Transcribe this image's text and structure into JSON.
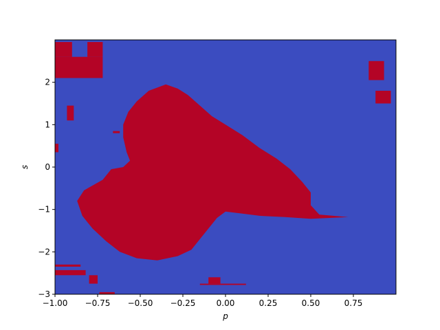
{
  "chart_data": {
    "type": "heatmap",
    "title": "",
    "xlabel": "p",
    "ylabel": "s",
    "xlim": [
      -1.0,
      1.0
    ],
    "ylim": [
      -3.0,
      3.0
    ],
    "xticks": [
      -1.0,
      -0.75,
      -0.5,
      -0.25,
      0.0,
      0.25,
      0.5,
      0.75
    ],
    "xtick_labels": [
      "−1.00",
      "−0.75",
      "−0.50",
      "−0.25",
      "0.00",
      "0.25",
      "0.50",
      "0.75"
    ],
    "yticks": [
      -3,
      -2,
      -1,
      0,
      1,
      2
    ],
    "ytick_labels": [
      "−3",
      "−2",
      "−1",
      "0",
      "1",
      "2"
    ],
    "grid": false,
    "legend": "none",
    "colors": {
      "class_0": "#3b4cc0",
      "class_1": "#b40426",
      "axes_edge": "#000000",
      "background": "#ffffff"
    },
    "classes": [
      {
        "id": 0,
        "color_key": "class_0"
      },
      {
        "id": 1,
        "color_key": "class_1"
      }
    ],
    "regions": [
      {
        "class": 1,
        "shape": "polygon",
        "points": [
          [
            -0.35,
            1.95
          ],
          [
            -0.28,
            1.85
          ],
          [
            -0.22,
            1.7
          ],
          [
            -0.15,
            1.45
          ],
          [
            -0.08,
            1.2
          ],
          [
            0.0,
            1.0
          ],
          [
            0.1,
            0.75
          ],
          [
            0.2,
            0.45
          ],
          [
            0.3,
            0.2
          ],
          [
            0.38,
            -0.05
          ],
          [
            0.45,
            -0.35
          ],
          [
            0.5,
            -0.6
          ],
          [
            0.5,
            -0.9
          ],
          [
            0.55,
            -1.12
          ],
          [
            0.72,
            -1.18
          ],
          [
            0.5,
            -1.22
          ],
          [
            0.35,
            -1.18
          ],
          [
            0.2,
            -1.15
          ],
          [
            0.1,
            -1.1
          ],
          [
            0.0,
            -1.05
          ],
          [
            -0.05,
            -1.2
          ],
          [
            -0.1,
            -1.45
          ],
          [
            -0.15,
            -1.7
          ],
          [
            -0.2,
            -1.95
          ],
          [
            -0.28,
            -2.1
          ],
          [
            -0.4,
            -2.2
          ],
          [
            -0.52,
            -2.15
          ],
          [
            -0.62,
            -2.0
          ],
          [
            -0.7,
            -1.75
          ],
          [
            -0.78,
            -1.45
          ],
          [
            -0.84,
            -1.15
          ],
          [
            -0.87,
            -0.8
          ],
          [
            -0.83,
            -0.55
          ],
          [
            -0.72,
            -0.3
          ],
          [
            -0.67,
            -0.05
          ],
          [
            -0.6,
            0.0
          ],
          [
            -0.56,
            0.15
          ],
          [
            -0.58,
            0.35
          ],
          [
            -0.6,
            0.7
          ],
          [
            -0.6,
            1.0
          ],
          [
            -0.57,
            1.3
          ],
          [
            -0.52,
            1.55
          ],
          [
            -0.45,
            1.8
          ]
        ]
      },
      {
        "class": 1,
        "shape": "rect",
        "x": [
          -1.0,
          -0.72
        ],
        "y": [
          2.1,
          2.6
        ]
      },
      {
        "class": 1,
        "shape": "rect",
        "x": [
          -1.0,
          -0.9
        ],
        "y": [
          2.6,
          2.95
        ]
      },
      {
        "class": 1,
        "shape": "rect",
        "x": [
          -0.81,
          -0.72
        ],
        "y": [
          2.6,
          2.95
        ]
      },
      {
        "class": 1,
        "shape": "rect",
        "x": [
          0.84,
          0.93
        ],
        "y": [
          2.05,
          2.5
        ]
      },
      {
        "class": 1,
        "shape": "rect",
        "x": [
          0.88,
          0.97
        ],
        "y": [
          1.5,
          1.8
        ]
      },
      {
        "class": 1,
        "shape": "rect",
        "x": [
          -0.93,
          -0.89
        ],
        "y": [
          1.1,
          1.45
        ]
      },
      {
        "class": 1,
        "shape": "rect",
        "x": [
          -1.0,
          -0.98
        ],
        "y": [
          0.35,
          0.55
        ]
      },
      {
        "class": 1,
        "shape": "rect",
        "x": [
          -1.0,
          -0.82
        ],
        "y": [
          -2.55,
          -2.43
        ]
      },
      {
        "class": 1,
        "shape": "rect",
        "x": [
          -1.0,
          -0.85
        ],
        "y": [
          -2.35,
          -2.3
        ]
      },
      {
        "class": 1,
        "shape": "rect",
        "x": [
          -0.8,
          -0.75
        ],
        "y": [
          -2.75,
          -2.55
        ]
      },
      {
        "class": 1,
        "shape": "rect",
        "x": [
          -0.1,
          -0.03
        ],
        "y": [
          -2.75,
          -2.6
        ]
      },
      {
        "class": 1,
        "shape": "rect",
        "x": [
          -0.15,
          0.12
        ],
        "y": [
          -2.78,
          -2.75
        ]
      },
      {
        "class": 1,
        "shape": "rect",
        "x": [
          -0.74,
          -0.65
        ],
        "y": [
          -3.0,
          -2.95
        ]
      },
      {
        "class": 1,
        "shape": "rect",
        "x": [
          -0.66,
          -0.62
        ],
        "y": [
          0.8,
          0.85
        ]
      }
    ]
  }
}
